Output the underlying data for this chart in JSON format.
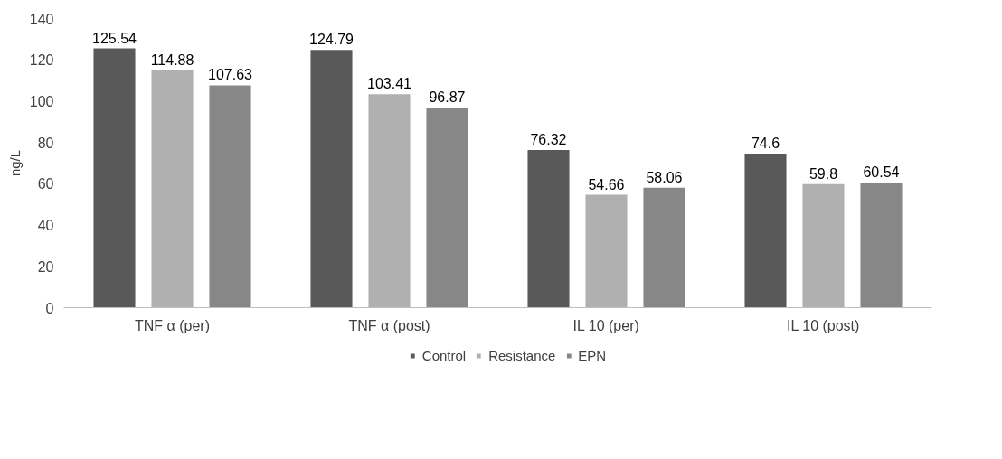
{
  "chart_data": {
    "type": "bar",
    "ylabel": "ng/L",
    "categories": [
      "TNF α (per)",
      "TNF α (post)",
      "IL 10 (per)",
      "IL 10 (post)"
    ],
    "series": [
      {
        "name": "Control",
        "color": "#595959",
        "values": [
          125.54,
          124.79,
          76.32,
          74.6
        ]
      },
      {
        "name": "Resistance",
        "color": "#b0b0b0",
        "values": [
          114.88,
          103.41,
          54.66,
          59.8
        ]
      },
      {
        "name": "EPN",
        "color": "#878787",
        "values": [
          107.63,
          96.87,
          58.06,
          60.54
        ]
      }
    ],
    "ylim": [
      0,
      140
    ],
    "yticks": [
      0,
      20,
      40,
      60,
      80,
      100,
      120,
      140
    ],
    "grid": false,
    "legend": "bottom",
    "data_labels": true
  }
}
